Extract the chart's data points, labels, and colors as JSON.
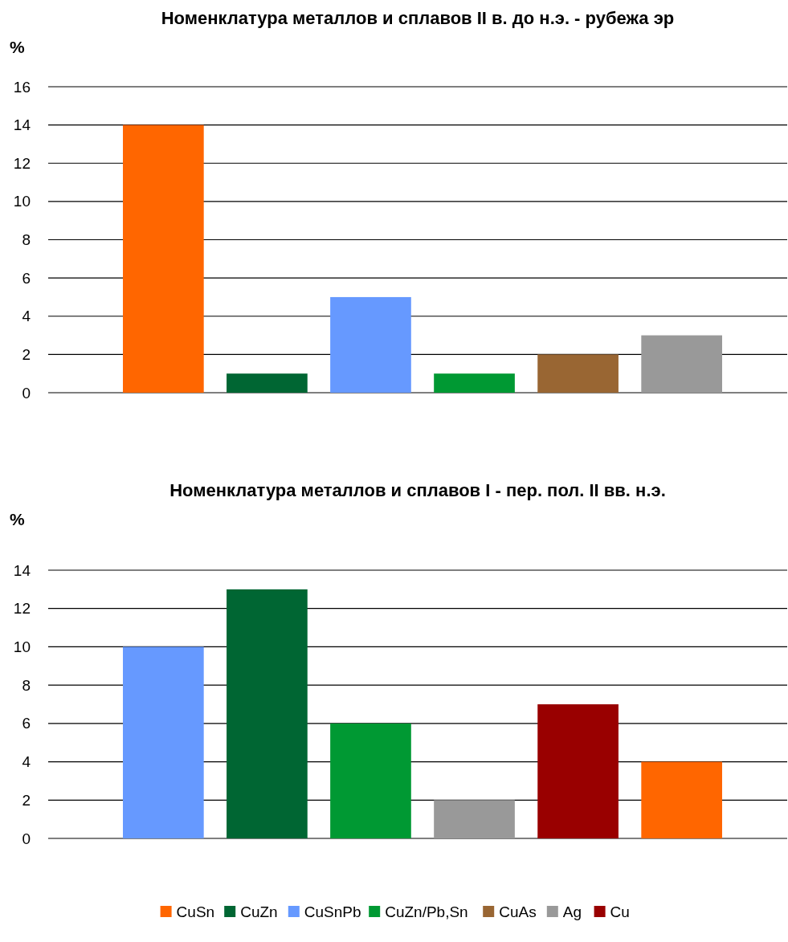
{
  "chart_data": [
    {
      "type": "bar",
      "title": "Номенклатура металлов и сплавов II в. до н.э. - рубежа эр",
      "ylabel": "%",
      "categories": [
        null,
        null,
        null,
        null,
        null,
        null
      ],
      "ylim": [
        0,
        16
      ],
      "yticks": [
        0,
        2,
        4,
        6,
        8,
        10,
        12,
        14,
        16
      ],
      "grid": "y",
      "legend": false,
      "tick_labels": "y",
      "series": [
        {
          "color": "#ff6600",
          "values": [
            14,
            null,
            null,
            null,
            null,
            null
          ]
        },
        {
          "color": "#006633",
          "values": [
            null,
            1,
            null,
            null,
            null,
            null
          ]
        },
        {
          "color": "#6699ff",
          "values": [
            null,
            null,
            5,
            null,
            null,
            null
          ]
        },
        {
          "color": "#009933",
          "values": [
            null,
            null,
            null,
            1,
            null,
            null
          ]
        },
        {
          "color": "#996633",
          "values": [
            null,
            null,
            null,
            null,
            2,
            null
          ]
        },
        {
          "color": "#999999",
          "values": [
            null,
            null,
            null,
            null,
            null,
            3
          ]
        }
      ]
    },
    {
      "type": "bar",
      "title": "Номенклатура металлов и сплавов I - пер. пол. II вв. н.э.",
      "ylabel": "%",
      "categories": [
        null,
        null,
        null,
        null,
        null,
        null
      ],
      "ylim": [
        0,
        14
      ],
      "yticks": [
        0,
        2,
        4,
        6,
        8,
        10,
        12,
        14
      ],
      "grid": "y",
      "legend": "bottom",
      "tick_labels": "y",
      "series": [
        {
          "name": "CuSn",
          "color": "#ff6600",
          "values": [
            null,
            null,
            null,
            null,
            null,
            4
          ]
        },
        {
          "name": "CuZn",
          "color": "#006633",
          "values": [
            null,
            13,
            null,
            null,
            null,
            null
          ]
        },
        {
          "name": "CuSnPb",
          "color": "#6699ff",
          "values": [
            10,
            null,
            null,
            null,
            null,
            null
          ]
        },
        {
          "name": "CuZn/Pb,Sn",
          "color": "#009933",
          "values": [
            null,
            null,
            6,
            null,
            null,
            null
          ]
        },
        {
          "name": "CuAs",
          "color": "#996633",
          "values": [
            null,
            null,
            null,
            null,
            null,
            null
          ]
        },
        {
          "name": "Ag",
          "color": "#999999",
          "values": [
            null,
            null,
            null,
            2,
            null,
            null
          ]
        },
        {
          "name": "Cu",
          "color": "#990000",
          "values": [
            null,
            null,
            null,
            null,
            7,
            null
          ]
        }
      ]
    }
  ]
}
